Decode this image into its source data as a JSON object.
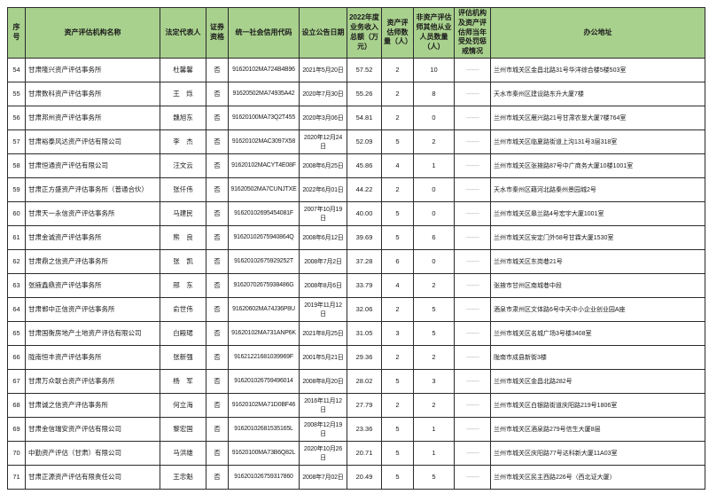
{
  "colors": {
    "header_bg": "#a9d18e",
    "border": "#2b2b2b",
    "dash": "#b7b7b7"
  },
  "table": {
    "headers": [
      "序号",
      "资产评估机构名称",
      "法定代表人",
      "证券资格",
      "统一社会信用代码",
      "设立公告日期",
      "2022年度业务收入总额（万元）",
      "资产评估师数量（人）",
      "非资产评估师其他从业人员数量（人）",
      "评估机构及资产评估师当年受处罚惩戒情况",
      "办公地址"
    ],
    "rows": [
      {
        "no": "54",
        "name": "甘肃隆兴资产评估事务所",
        "legal_rep": "杜馨馨",
        "securities": "否",
        "credit_code": "91620102MA724B4B96",
        "announce_date": "2021年5月20日",
        "income": "57.52",
        "appraisers": "2",
        "other_staff": "10",
        "punishment": "——",
        "address": "兰州市城关区金昌北路31号华洋综合楼5楼503室"
      },
      {
        "no": "55",
        "name": "甘肃数科资产评估事务所",
        "legal_rep": "王　烁",
        "securities": "否",
        "credit_code": "91620502MA74935A42",
        "announce_date": "2020年7月30日",
        "income": "55.26",
        "appraisers": "2",
        "other_staff": "8",
        "punishment": "——",
        "address": "天水市秦州区建设路东升大厦7楼"
      },
      {
        "no": "56",
        "name": "甘肃邦州资产评估事务所",
        "legal_rep": "魏旭东",
        "securities": "否",
        "credit_code": "91620100MA73Q2T455",
        "announce_date": "2020年3月06日",
        "income": "54.81",
        "appraisers": "2",
        "other_staff": "0",
        "punishment": "——",
        "address": "兰州市城关区雁兴路21号甘肃农垦大厦7楼764室"
      },
      {
        "no": "57",
        "name": "甘肃裕泰风达资产评估有限公司",
        "legal_rep": "李　杰",
        "securities": "否",
        "credit_code": "91620102MAC3097X58",
        "announce_date": "2020年12月24日",
        "income": "52.09",
        "appraisers": "5",
        "other_staff": "2",
        "punishment": "——",
        "address": "兰州市城关区临夏路街道上沟131号3层318室"
      },
      {
        "no": "58",
        "name": "甘肃恒通资产评估有限公司",
        "legal_rep": "汪文云",
        "securities": "否",
        "credit_code": "91620102MACYT4E08F",
        "announce_date": "2008年6月25日",
        "income": "45.86",
        "appraisers": "4",
        "other_staff": "1",
        "punishment": "——",
        "address": "兰州市城关区张掖路87号中广商务大厦10楼1001室"
      },
      {
        "no": "59",
        "name": "甘肃正方盛资产评估事务所（普通合伙）",
        "legal_rep": "张仟伟",
        "securities": "否",
        "credit_code": "91620502MA7CUNJTXE",
        "announce_date": "2022年6月01日",
        "income": "44.22",
        "appraisers": "2",
        "other_staff": "0",
        "punishment": "——",
        "address": "天水市秦州区藉河北路秦州景园城2号"
      },
      {
        "no": "60",
        "name": "甘肃天一永信资产评估事务所",
        "legal_rep": "马建民",
        "securities": "否",
        "credit_code": "91620102695454081F",
        "announce_date": "2007年10月19日",
        "income": "40.00",
        "appraisers": "5",
        "other_staff": "0",
        "punishment": "——",
        "address": "兰州市城关区皋兰路4号宏宇大厦1001室"
      },
      {
        "no": "61",
        "name": "甘肃金诚资产评估事务所",
        "legal_rep": "熊　良",
        "securities": "否",
        "credit_code": "91620102675940864Q",
        "announce_date": "2008年6月12日",
        "income": "39.69",
        "appraisers": "5",
        "other_staff": "6",
        "punishment": "——",
        "address": "兰州市城关区安定门外58号甘霖大厦1530室"
      },
      {
        "no": "62",
        "name": "甘肃鼎之信资产评估事务所",
        "legal_rep": "张　凯",
        "securities": "否",
        "credit_code": "91620102675929252T",
        "announce_date": "2008年7月2日",
        "income": "37.28",
        "appraisers": "6",
        "other_staff": "0",
        "punishment": "——",
        "address": "兰州市城关区东岗巷21号"
      },
      {
        "no": "63",
        "name": "张掖鑫鼎资产评估事务所",
        "legal_rep": "邢　东",
        "securities": "否",
        "credit_code": "91620702675938486G",
        "announce_date": "2008年8月6日",
        "income": "33.79",
        "appraisers": "4",
        "other_staff": "2",
        "punishment": "——",
        "address": "张掖市甘州区南城巷中段"
      },
      {
        "no": "64",
        "name": "甘肃郸中正信资产评估事务所",
        "legal_rep": "俞世伟",
        "securities": "否",
        "credit_code": "91620602MA74J36P8U",
        "announce_date": "2019年11月12日",
        "income": "32.06",
        "appraisers": "2",
        "other_staff": "5",
        "punishment": "——",
        "address": "酒泉市肃州区文体路6号中天中小企业创业园A座"
      },
      {
        "no": "65",
        "name": "甘肃国衡房地产土地资产评估有限公司",
        "legal_rep": "白殿珺",
        "securities": "否",
        "credit_code": "91620102MA731ANP6K",
        "announce_date": "2021年8月25日",
        "income": "31.05",
        "appraisers": "3",
        "other_staff": "5",
        "punishment": "——",
        "address": "兰州市城关区名城广场3号楼3408室"
      },
      {
        "no": "66",
        "name": "陇南恒丰资产评估事务所",
        "legal_rep": "张新强",
        "securities": "否",
        "credit_code": "91621221681039969F",
        "announce_date": "2001年5月21日",
        "income": "29.36",
        "appraisers": "2",
        "other_staff": "2",
        "punishment": "——",
        "address": "陇南市成县新街3楼"
      },
      {
        "no": "67",
        "name": "甘肃万众联合资产评估事务所",
        "legal_rep": "杨　军",
        "securities": "否",
        "credit_code": "916201026759496014",
        "announce_date": "2008年8月20日",
        "income": "28.02",
        "appraisers": "5",
        "other_staff": "3",
        "punishment": "——",
        "address": "兰州市城关区金昌北路282号"
      },
      {
        "no": "68",
        "name": "甘肃诚之信资产评估事务所",
        "legal_rep": "何立海",
        "securities": "否",
        "credit_code": "91620102MA71D0BF46",
        "announce_date": "2016年11月12日",
        "income": "27.79",
        "appraisers": "2",
        "other_staff": "2",
        "punishment": "——",
        "address": "兰州市城关区白银路街道庆阳路219号1806室"
      },
      {
        "no": "69",
        "name": "甘肃金信瑞安资产评估有限公司",
        "legal_rep": "黎宏国",
        "securities": "否",
        "credit_code": "91620102681535165L",
        "announce_date": "2008年12月19日",
        "income": "23.36",
        "appraisers": "5",
        "other_staff": "1",
        "punishment": "——",
        "address": "兰州市城关区酒泉路279号信生大厦8层"
      },
      {
        "no": "70",
        "name": "中勤资产评估（甘肃）有限公司",
        "legal_rep": "马洪雄",
        "securities": "否",
        "credit_code": "91620100MA73B6Q82L",
        "announce_date": "2020年10月26日",
        "income": "20.71",
        "appraisers": "5",
        "other_staff": "1",
        "punishment": "——",
        "address": "兰州市城关区庆阳路77号达科新大厦11A03室"
      },
      {
        "no": "71",
        "name": "甘肃正源资产评估有限责任公司",
        "legal_rep": "王忠魁",
        "securities": "否",
        "credit_code": "916201026759317860",
        "announce_date": "2008年7月02日",
        "income": "20.49",
        "appraisers": "5",
        "other_staff": "5",
        "punishment": "——",
        "address": "兰州市城关区民主西路226号（西北证大厦）"
      }
    ]
  }
}
